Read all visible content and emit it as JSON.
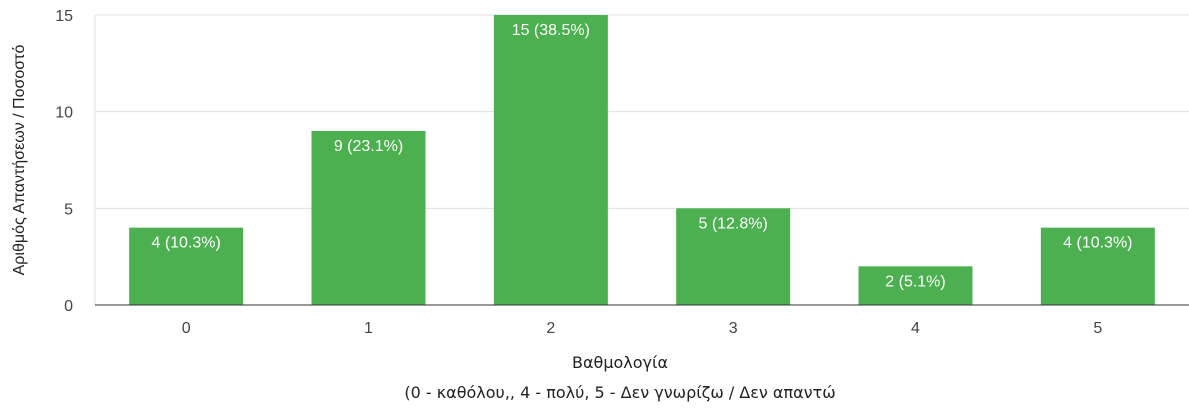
{
  "chart_data": {
    "type": "bar",
    "categories": [
      "0",
      "1",
      "2",
      "3",
      "4",
      "5"
    ],
    "values": [
      4,
      9,
      15,
      5,
      2,
      4
    ],
    "data_labels": [
      "4 (10.3%)",
      "9 (23.1%)",
      "15 (38.5%)",
      "5 (12.8%)",
      "2 (5.1%)",
      "4 (10.3%)"
    ],
    "ylim": [
      0,
      15
    ],
    "yticks": [
      0,
      5,
      10,
      15
    ],
    "ylabel": "Αριθμός Απαντήσεων / Ποσοστό",
    "xlabel_line1": "Βαθμολογία",
    "xlabel_line2": "(0 - καθόλου,, 4 - πολύ, 5 - Δεν γνωρίζω / Δεν απαντώ",
    "grid": true,
    "bar_color": "#4caf50",
    "gridline_color": "#e0e0e0",
    "axis_color": "#333333"
  }
}
